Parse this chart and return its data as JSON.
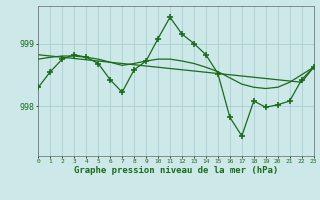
{
  "xlabel": "Graphe pression niveau de la mer (hPa)",
  "background_color": "#cce8e8",
  "grid_color": "#aacece",
  "line_color": "#1a6b1a",
  "x_values": [
    0,
    1,
    2,
    3,
    4,
    5,
    6,
    7,
    8,
    9,
    10,
    11,
    12,
    13,
    14,
    15,
    16,
    17,
    18,
    19,
    20,
    21,
    22,
    23
  ],
  "y_jagged": [
    998.3,
    998.55,
    998.75,
    998.82,
    998.78,
    998.68,
    998.42,
    998.22,
    998.58,
    998.72,
    999.08,
    999.42,
    999.15,
    999.0,
    998.82,
    998.52,
    997.82,
    997.52,
    998.08,
    997.98,
    998.02,
    998.08,
    998.42,
    998.62
  ],
  "y_smooth": [
    998.75,
    998.78,
    998.8,
    998.8,
    998.78,
    998.75,
    998.7,
    998.65,
    998.68,
    998.72,
    998.75,
    998.75,
    998.72,
    998.68,
    998.62,
    998.55,
    998.45,
    998.35,
    998.3,
    998.28,
    998.3,
    998.38,
    998.5,
    998.62
  ],
  "y_trend": [
    998.82,
    998.8,
    998.78,
    998.76,
    998.74,
    998.72,
    998.7,
    998.68,
    998.66,
    998.64,
    998.62,
    998.6,
    998.58,
    998.56,
    998.54,
    998.52,
    998.5,
    998.48,
    998.46,
    998.44,
    998.42,
    998.4,
    998.38,
    998.62
  ],
  "ylim": [
    997.2,
    999.6
  ],
  "ytick_positions": [
    998.0,
    999.0
  ],
  "ytick_labels": [
    "998",
    "999"
  ],
  "xlim": [
    0,
    23
  ],
  "figsize": [
    3.2,
    2.0
  ],
  "dpi": 100
}
